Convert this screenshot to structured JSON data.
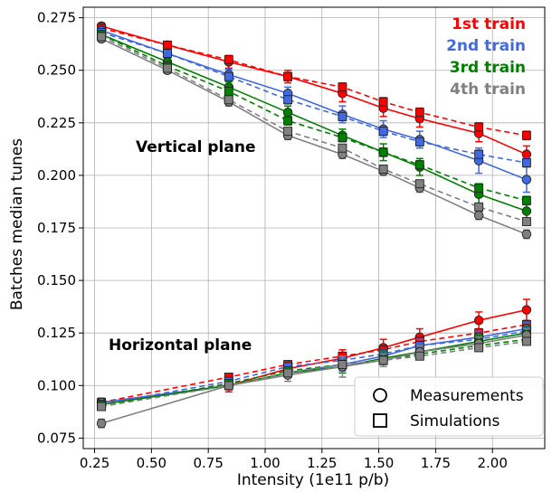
{
  "chart_data": {
    "type": "line",
    "xlabel": "Intensity (1e11 p/b)",
    "ylabel": "Batches median tunes",
    "xlim": [
      0.2,
      2.23
    ],
    "ylim": [
      0.07,
      0.28
    ],
    "xticks": [
      "0.25",
      "0.50",
      "0.75",
      "1.00",
      "1.25",
      "1.50",
      "1.75",
      "2.00"
    ],
    "xtick_values": [
      0.25,
      0.5,
      0.75,
      1.0,
      1.25,
      1.5,
      1.75,
      2.0
    ],
    "yticks": [
      "0.075",
      "0.100",
      "0.125",
      "0.150",
      "0.175",
      "0.200",
      "0.225",
      "0.250",
      "0.275"
    ],
    "ytick_values": [
      0.075,
      0.1,
      0.125,
      0.15,
      0.175,
      0.2,
      0.225,
      0.25,
      0.275
    ],
    "grid": true,
    "annotations": {
      "vertical": "Vertical plane",
      "horizontal": "Horizontal plane"
    },
    "train_labels": [
      {
        "text": "1st train",
        "color": "#ff0000"
      },
      {
        "text": "2nd train",
        "color": "#4169e1"
      },
      {
        "text": "3rd train",
        "color": "#008000"
      },
      {
        "text": "4th train",
        "color": "#808080"
      }
    ],
    "legend": {
      "position": "lower-right",
      "entries": [
        {
          "label": "Measurements",
          "marker": "circle",
          "style": "solid"
        },
        {
          "label": "Simulations",
          "marker": "square",
          "style": "dashed"
        }
      ]
    },
    "x": [
      0.28,
      0.57,
      0.84,
      1.1,
      1.34,
      1.52,
      1.68,
      1.94,
      2.15
    ],
    "series": [
      {
        "train": 1,
        "plane": "vertical",
        "kind": "measurement",
        "color": "#ff0000",
        "values": [
          0.271,
          0.262,
          0.254,
          0.247,
          0.239,
          0.232,
          0.227,
          0.22,
          0.21
        ],
        "errors": [
          0.0015,
          0.0015,
          0.003,
          0.003,
          0.004,
          0.004,
          0.004,
          0.004,
          0.004
        ]
      },
      {
        "train": 1,
        "plane": "vertical",
        "kind": "simulation",
        "color": "#ff0000",
        "values": [
          0.27,
          0.262,
          0.255,
          0.247,
          0.242,
          0.235,
          0.23,
          0.223,
          0.219
        ],
        "errors": [
          0.001,
          0.001,
          0.002,
          0.002,
          0.002,
          0.002,
          0.002,
          0.002,
          0.002
        ]
      },
      {
        "train": 2,
        "plane": "vertical",
        "kind": "measurement",
        "color": "#4169e1",
        "values": [
          0.269,
          0.258,
          0.248,
          0.239,
          0.229,
          0.222,
          0.217,
          0.207,
          0.198
        ],
        "errors": [
          0.0015,
          0.0015,
          0.0025,
          0.003,
          0.004,
          0.004,
          0.004,
          0.006,
          0.006
        ]
      },
      {
        "train": 2,
        "plane": "vertical",
        "kind": "simulation",
        "color": "#4169e1",
        "values": [
          0.268,
          0.258,
          0.247,
          0.236,
          0.228,
          0.221,
          0.216,
          0.21,
          0.206
        ],
        "errors": [
          0.001,
          0.001,
          0.002,
          0.002,
          0.002,
          0.002,
          0.002,
          0.002,
          0.002
        ]
      },
      {
        "train": 3,
        "plane": "vertical",
        "kind": "measurement",
        "color": "#008000",
        "values": [
          0.267,
          0.254,
          0.242,
          0.23,
          0.219,
          0.211,
          0.204,
          0.191,
          0.183
        ],
        "errors": [
          0.0015,
          0.0015,
          0.0025,
          0.003,
          0.003,
          0.004,
          0.004,
          0.005,
          0.005
        ]
      },
      {
        "train": 3,
        "plane": "vertical",
        "kind": "simulation",
        "color": "#008000",
        "values": [
          0.267,
          0.252,
          0.24,
          0.226,
          0.218,
          0.211,
          0.205,
          0.194,
          0.188
        ],
        "errors": [
          0.001,
          0.001,
          0.002,
          0.002,
          0.002,
          0.002,
          0.002,
          0.002,
          0.002
        ]
      },
      {
        "train": 4,
        "plane": "vertical",
        "kind": "measurement",
        "color": "#808080",
        "values": [
          0.265,
          0.25,
          0.235,
          0.219,
          0.21,
          0.202,
          0.194,
          0.181,
          0.172
        ],
        "errors": [
          0.001,
          0.0015,
          0.002,
          0.002,
          0.002,
          0.002,
          0.002,
          0.002,
          0.002
        ]
      },
      {
        "train": 4,
        "plane": "vertical",
        "kind": "simulation",
        "color": "#808080",
        "values": [
          0.266,
          0.251,
          0.236,
          0.221,
          0.213,
          0.203,
          0.196,
          0.185,
          0.178
        ],
        "errors": [
          0.001,
          0.001,
          0.001,
          0.001,
          0.001,
          0.001,
          0.001,
          0.001,
          0.001
        ]
      },
      {
        "train": 1,
        "plane": "horizontal",
        "kind": "measurement",
        "color": "#ff0000",
        "values": [
          0.092,
          null,
          0.1,
          0.108,
          0.113,
          0.118,
          0.123,
          0.131,
          0.136
        ],
        "errors": [
          0.002,
          0,
          0.003,
          0.003,
          0.004,
          0.004,
          0.004,
          0.004,
          0.005
        ]
      },
      {
        "train": 1,
        "plane": "horizontal",
        "kind": "simulation",
        "color": "#ff0000",
        "values": [
          0.092,
          null,
          0.104,
          0.11,
          0.114,
          0.117,
          0.121,
          0.125,
          0.129
        ],
        "errors": [
          0.001,
          0,
          0.001,
          0.001,
          0.001,
          0.001,
          0.001,
          0.001,
          0.001
        ]
      },
      {
        "train": 2,
        "plane": "horizontal",
        "kind": "measurement",
        "color": "#4169e1",
        "values": [
          0.092,
          null,
          0.1,
          0.106,
          0.11,
          0.114,
          0.119,
          0.123,
          0.127
        ],
        "errors": [
          0.001,
          0,
          0.002,
          0.002,
          0.003,
          0.003,
          0.003,
          0.003,
          0.003
        ]
      },
      {
        "train": 2,
        "plane": "horizontal",
        "kind": "simulation",
        "color": "#4169e1",
        "values": [
          0.091,
          null,
          0.102,
          0.109,
          0.112,
          0.115,
          0.119,
          0.122,
          0.126
        ],
        "errors": [
          0.001,
          0,
          0.001,
          0.001,
          0.001,
          0.001,
          0.001,
          0.001,
          0.001
        ]
      },
      {
        "train": 3,
        "plane": "horizontal",
        "kind": "measurement",
        "color": "#008000",
        "values": [
          0.091,
          null,
          0.1,
          0.106,
          0.109,
          0.113,
          0.116,
          0.121,
          0.125
        ],
        "errors": [
          0.001,
          0,
          0.002,
          0.002,
          0.003,
          0.003,
          0.003,
          0.003,
          0.003
        ]
      },
      {
        "train": 3,
        "plane": "horizontal",
        "kind": "simulation",
        "color": "#008000",
        "values": [
          0.09,
          null,
          0.101,
          0.107,
          0.11,
          0.112,
          0.115,
          0.119,
          0.122
        ],
        "errors": [
          0.001,
          0,
          0.001,
          0.001,
          0.001,
          0.001,
          0.001,
          0.001,
          0.001
        ]
      },
      {
        "train": 4,
        "plane": "horizontal",
        "kind": "measurement",
        "color": "#808080",
        "values": [
          0.082,
          null,
          0.1,
          0.105,
          0.109,
          0.112,
          0.116,
          0.12,
          0.124
        ],
        "errors": [
          0.002,
          0,
          0.002,
          0.003,
          0.005,
          0.003,
          0.003,
          0.003,
          0.003
        ]
      },
      {
        "train": 4,
        "plane": "horizontal",
        "kind": "simulation",
        "color": "#808080",
        "values": [
          0.09,
          null,
          0.1,
          0.106,
          0.11,
          0.112,
          0.114,
          0.118,
          0.121
        ],
        "errors": [
          0.001,
          0,
          0.001,
          0.001,
          0.001,
          0.001,
          0.001,
          0.001,
          0.001
        ]
      }
    ]
  }
}
